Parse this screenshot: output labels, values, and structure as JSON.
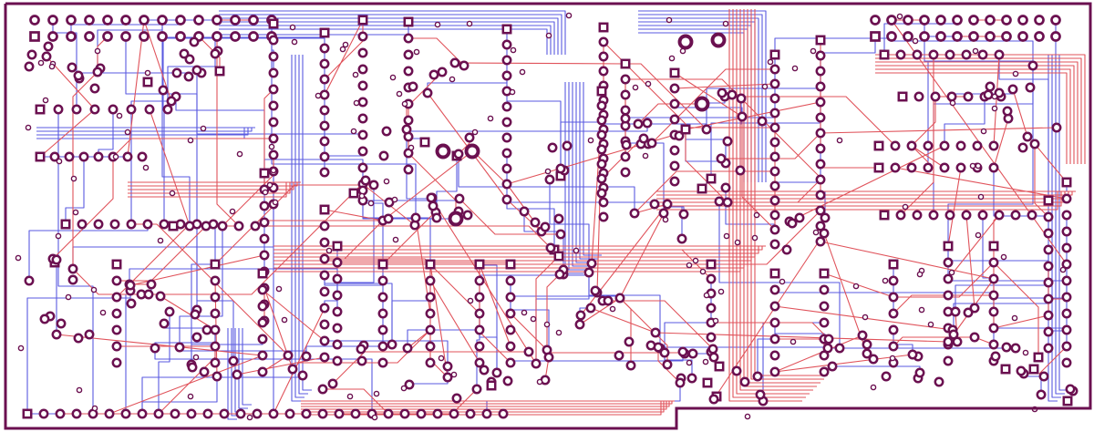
{
  "board": {
    "colors": {
      "outline": "#6b1050",
      "pad": "#6b1050",
      "pad_hole": "#ffffff",
      "trace_top": "#e0525a",
      "trace_bottom": "#5a5ae0",
      "background": "#ffffff"
    },
    "layers": [
      "top-copper-red",
      "bottom-copper-blue",
      "pads-vias-purple",
      "board-outline"
    ]
  }
}
